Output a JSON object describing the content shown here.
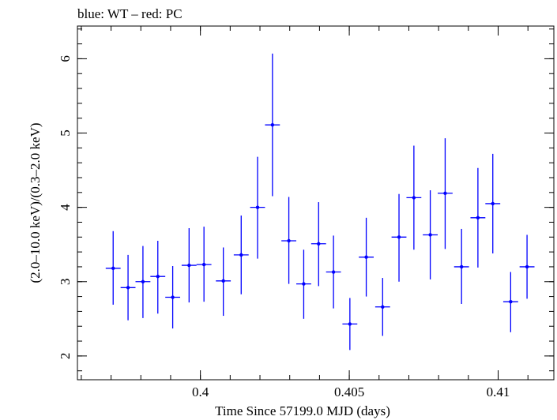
{
  "chart_data": {
    "type": "scatter",
    "title": "blue: WT – red: PC",
    "xlabel": "Time Since 57199.0 MJD (days)",
    "ylabel": "(2.0–10.0 keV)/(0.3–2.0 keV)",
    "xlim": [
      0.39587,
      0.41187
    ],
    "ylim": [
      1.68,
      6.44
    ],
    "x_ticks": [
      0.4,
      0.405,
      0.41
    ],
    "x_tick_labels": [
      "0.4",
      "0.405",
      "0.41"
    ],
    "y_ticks": [
      2,
      3,
      4,
      5,
      6
    ],
    "y_tick_labels": [
      "2",
      "3",
      "4",
      "5",
      "6"
    ],
    "grid": false,
    "series": [
      {
        "color": "#0000ff",
        "points": [
          {
            "x": 0.39707,
            "y": 3.18,
            "xerr": 0.00025,
            "ylo": 2.69,
            "yhi": 3.68
          },
          {
            "x": 0.39757,
            "y": 2.92,
            "xerr": 0.00025,
            "ylo": 2.48,
            "yhi": 3.36
          },
          {
            "x": 0.39807,
            "y": 3.0,
            "xerr": 0.00025,
            "ylo": 2.51,
            "yhi": 3.48
          },
          {
            "x": 0.39857,
            "y": 3.07,
            "xerr": 0.00025,
            "ylo": 2.57,
            "yhi": 3.55
          },
          {
            "x": 0.39907,
            "y": 2.79,
            "xerr": 0.00025,
            "ylo": 2.37,
            "yhi": 3.21
          },
          {
            "x": 0.39962,
            "y": 3.22,
            "xerr": 0.00025,
            "ylo": 2.72,
            "yhi": 3.72
          },
          {
            "x": 0.40012,
            "y": 3.23,
            "xerr": 0.00025,
            "ylo": 2.73,
            "yhi": 3.74
          },
          {
            "x": 0.40077,
            "y": 3.01,
            "xerr": 0.00025,
            "ylo": 2.54,
            "yhi": 3.46
          },
          {
            "x": 0.40137,
            "y": 3.36,
            "xerr": 0.00025,
            "ylo": 2.83,
            "yhi": 3.89
          },
          {
            "x": 0.40192,
            "y": 4.0,
            "xerr": 0.00025,
            "ylo": 3.31,
            "yhi": 4.68
          },
          {
            "x": 0.40242,
            "y": 5.11,
            "xerr": 0.00025,
            "ylo": 4.15,
            "yhi": 6.07
          },
          {
            "x": 0.40297,
            "y": 3.55,
            "xerr": 0.00025,
            "ylo": 2.97,
            "yhi": 4.14
          },
          {
            "x": 0.40347,
            "y": 2.97,
            "xerr": 0.00025,
            "ylo": 2.5,
            "yhi": 3.43
          },
          {
            "x": 0.40397,
            "y": 3.51,
            "xerr": 0.00025,
            "ylo": 2.94,
            "yhi": 4.07
          },
          {
            "x": 0.40447,
            "y": 3.13,
            "xerr": 0.00025,
            "ylo": 2.64,
            "yhi": 3.62
          },
          {
            "x": 0.40502,
            "y": 2.43,
            "xerr": 0.00025,
            "ylo": 2.08,
            "yhi": 2.78
          },
          {
            "x": 0.40557,
            "y": 3.33,
            "xerr": 0.00025,
            "ylo": 2.8,
            "yhi": 3.86
          },
          {
            "x": 0.40612,
            "y": 2.66,
            "xerr": 0.00025,
            "ylo": 2.27,
            "yhi": 3.05
          },
          {
            "x": 0.40667,
            "y": 3.6,
            "xerr": 0.00025,
            "ylo": 3.0,
            "yhi": 4.18
          },
          {
            "x": 0.40717,
            "y": 4.13,
            "xerr": 0.00025,
            "ylo": 3.43,
            "yhi": 4.83
          },
          {
            "x": 0.40772,
            "y": 3.63,
            "xerr": 0.00025,
            "ylo": 3.03,
            "yhi": 4.23
          },
          {
            "x": 0.40822,
            "y": 4.19,
            "xerr": 0.00025,
            "ylo": 3.44,
            "yhi": 4.93
          },
          {
            "x": 0.40877,
            "y": 3.2,
            "xerr": 0.00025,
            "ylo": 2.7,
            "yhi": 3.71
          },
          {
            "x": 0.40932,
            "y": 3.86,
            "xerr": 0.00025,
            "ylo": 3.19,
            "yhi": 4.53
          },
          {
            "x": 0.40982,
            "y": 4.05,
            "xerr": 0.00025,
            "ylo": 3.38,
            "yhi": 4.72
          },
          {
            "x": 0.41042,
            "y": 2.73,
            "xerr": 0.00025,
            "ylo": 2.32,
            "yhi": 3.13
          },
          {
            "x": 0.41097,
            "y": 3.2,
            "xerr": 0.00025,
            "ylo": 2.77,
            "yhi": 3.63
          }
        ]
      }
    ]
  }
}
